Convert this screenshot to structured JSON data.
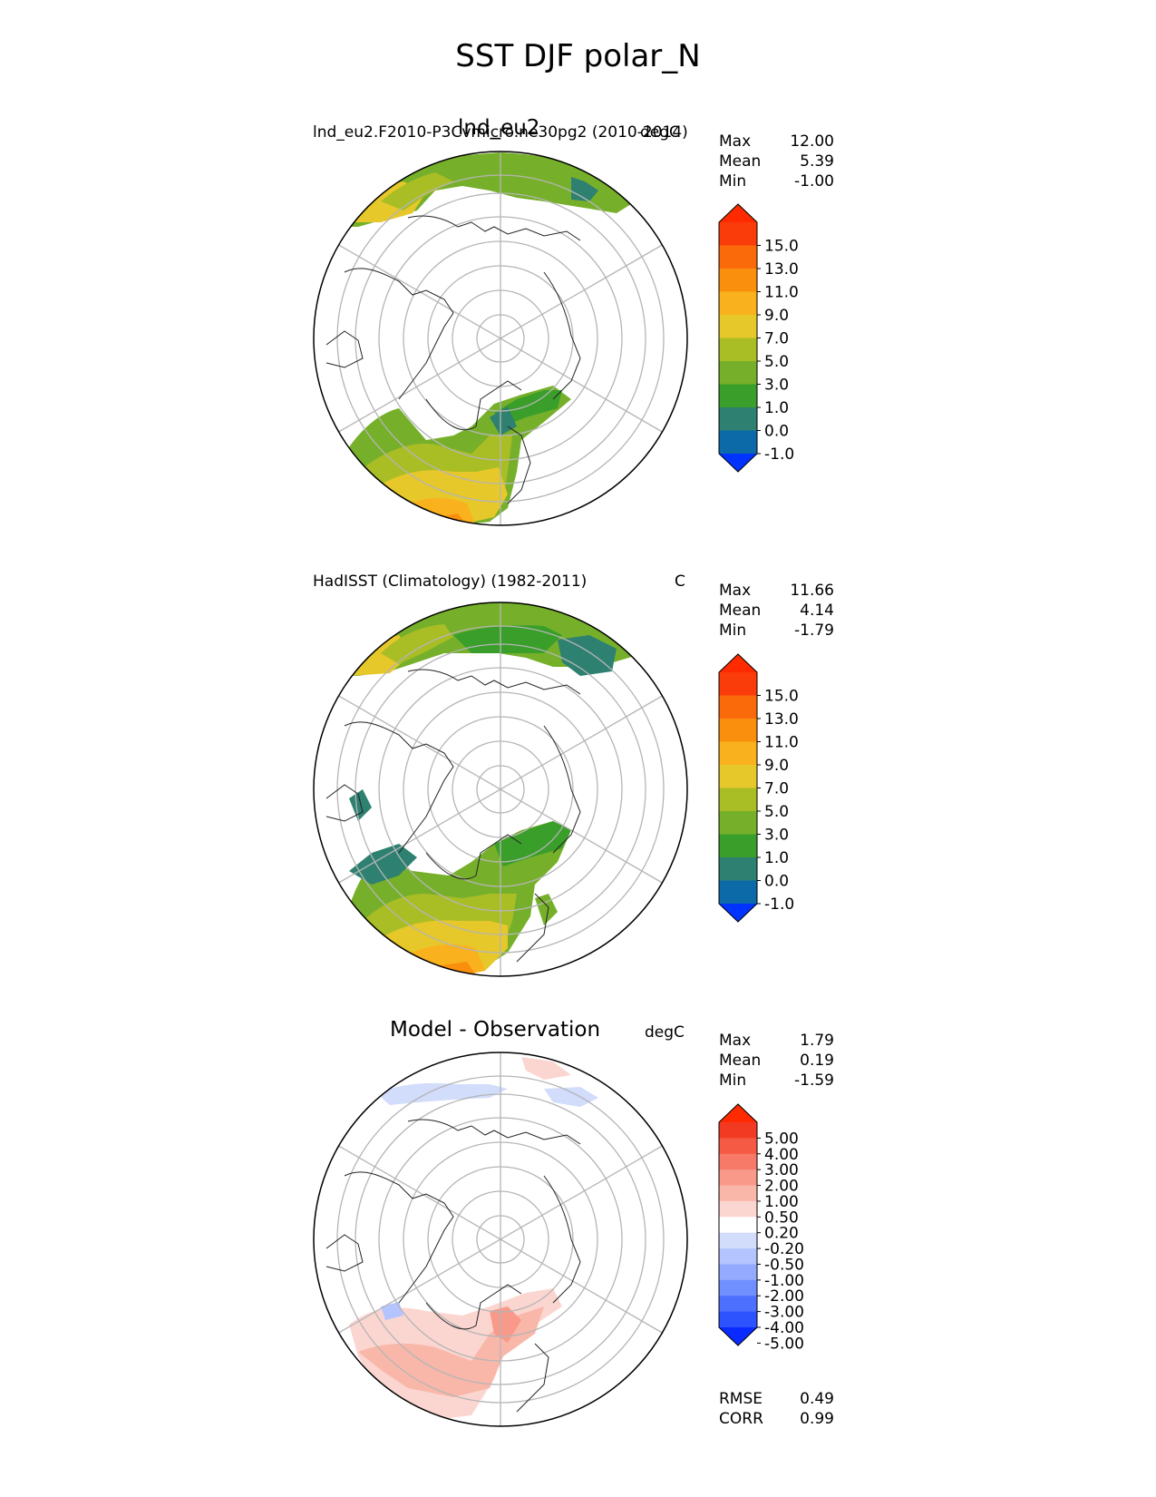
{
  "figure": {
    "title": "SST DJF polar_N"
  },
  "panels": [
    {
      "center_title": "lnd_eu2",
      "left_title": "lnd_eu2.F2010-P3Cvmicro.ne30pg2 (2010-2014)",
      "units": "degC",
      "stats": {
        "max_label": "Max",
        "max": "12.00",
        "mean_label": "Mean",
        "mean": "5.39",
        "min_label": "Min",
        "min": "-1.00"
      },
      "colorbar": {
        "ticks": [
          "15.0",
          "13.0",
          "11.0",
          "9.0",
          "7.0",
          "5.0",
          "3.0",
          "1.0",
          "0.0",
          "-1.0"
        ],
        "colors": [
          "#0033ff",
          "#0d6aa8",
          "#2e8070",
          "#3a9e2a",
          "#76b02a",
          "#a9bd25",
          "#e6c82a",
          "#f9b21d",
          "#fa8f0e",
          "#fb6a0a",
          "#fa3c0a",
          "#ff2a00"
        ]
      }
    },
    {
      "center_title": "",
      "left_title": "HadISST (Climatology) (1982-2011)",
      "units": "C",
      "stats": {
        "max_label": "Max",
        "max": "11.66",
        "mean_label": "Mean",
        "mean": "4.14",
        "min_label": "Min",
        "min": "-1.79"
      },
      "colorbar": {
        "ticks": [
          "15.0",
          "13.0",
          "11.0",
          "9.0",
          "7.0",
          "5.0",
          "3.0",
          "1.0",
          "0.0",
          "-1.0"
        ],
        "colors": [
          "#0033ff",
          "#0d6aa8",
          "#2e8070",
          "#3a9e2a",
          "#76b02a",
          "#a9bd25",
          "#e6c82a",
          "#f9b21d",
          "#fa8f0e",
          "#fb6a0a",
          "#fa3c0a",
          "#ff2a00"
        ]
      }
    },
    {
      "center_title": "Model - Observation",
      "left_title": "",
      "units": "degC",
      "stats": {
        "max_label": "Max",
        "max": "1.79",
        "mean_label": "Mean",
        "mean": "0.19",
        "min_label": "Min",
        "min": "-1.59"
      },
      "colorbar": {
        "ticks": [
          "5.00",
          "4.00",
          "3.00",
          "2.00",
          "1.00",
          "0.50",
          "0.20",
          "-0.20",
          "-0.50",
          "-1.00",
          "-2.00",
          "-3.00",
          "-4.00",
          "-5.00"
        ],
        "colors": [
          "#0a2bff",
          "#2d53ff",
          "#4e70ff",
          "#7090ff",
          "#93aaff",
          "#b3c4ff",
          "#d2dcfb",
          "#ffffff",
          "#fbd6d0",
          "#f9b7aa",
          "#f8998a",
          "#f77a68",
          "#f55a44",
          "#f23a22",
          "#ff2a00"
        ]
      },
      "rmse_label": "RMSE",
      "rmse": "0.49",
      "corr_label": "CORR",
      "corr": "0.99"
    }
  ],
  "chart_data": [
    {
      "type": "heatmap",
      "title": "lnd_eu2",
      "subtitle": "lnd_eu2.F2010-P3Cvmicro.ne30pg2 (2010-2014)",
      "units": "degC",
      "projection": "north polar stereographic",
      "stats": {
        "max": 12.0,
        "mean": 5.39,
        "min": -1.0
      },
      "colorbar_levels": [
        -1.0,
        0.0,
        1.0,
        3.0,
        5.0,
        7.0,
        9.0,
        11.0,
        13.0,
        15.0
      ]
    },
    {
      "type": "heatmap",
      "subtitle": "HadISST (Climatology) (1982-2011)",
      "units": "C",
      "projection": "north polar stereographic",
      "stats": {
        "max": 11.66,
        "mean": 4.14,
        "min": -1.79
      },
      "colorbar_levels": [
        -1.0,
        0.0,
        1.0,
        3.0,
        5.0,
        7.0,
        9.0,
        11.0,
        13.0,
        15.0
      ]
    },
    {
      "type": "heatmap",
      "title": "Model - Observation",
      "units": "degC",
      "projection": "north polar stereographic",
      "stats": {
        "max": 1.79,
        "mean": 0.19,
        "min": -1.59,
        "rmse": 0.49,
        "corr": 0.99
      },
      "colorbar_levels": [
        -5.0,
        -4.0,
        -3.0,
        -2.0,
        -1.0,
        -0.5,
        -0.2,
        0.2,
        0.5,
        1.0,
        2.0,
        3.0,
        4.0,
        5.0
      ]
    }
  ]
}
